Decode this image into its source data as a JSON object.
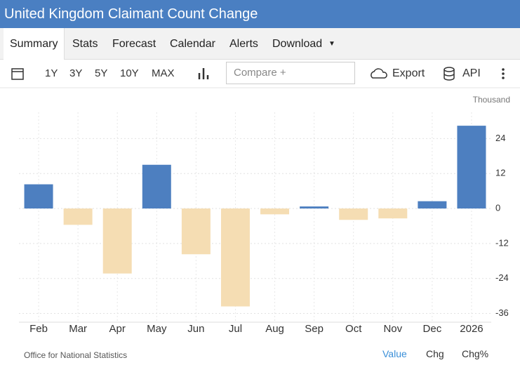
{
  "header": {
    "title": "United Kingdom Claimant Count Change"
  },
  "tabs": [
    "Summary",
    "Stats",
    "Forecast",
    "Calendar",
    "Alerts",
    "Download"
  ],
  "toolbar": {
    "ranges": [
      "1Y",
      "3Y",
      "5Y",
      "10Y",
      "MAX"
    ],
    "compare": "Compare +",
    "export": "Export",
    "api": "API"
  },
  "footer": {
    "source": "Office for National Statistics",
    "views": [
      "Value",
      "Chg",
      "Chg%"
    ]
  },
  "chart_data": {
    "type": "bar",
    "unit": "Thousand",
    "categories": [
      "Feb",
      "Mar",
      "Apr",
      "May",
      "Jun",
      "Jul",
      "Aug",
      "Sep",
      "Oct",
      "Nov",
      "Dec",
      "2026"
    ],
    "values": [
      8.3,
      -5.6,
      -22.3,
      15,
      -15.7,
      -33.6,
      -2,
      0.7,
      -3.9,
      -3.4,
      2.5,
      28.4
    ],
    "positive_color": "#4d7fc0",
    "negative_color": "#f5ddb3",
    "ylim": [
      -39,
      33
    ],
    "yticks": [
      -36,
      -24,
      -12,
      0,
      12,
      24
    ],
    "grid": true
  }
}
